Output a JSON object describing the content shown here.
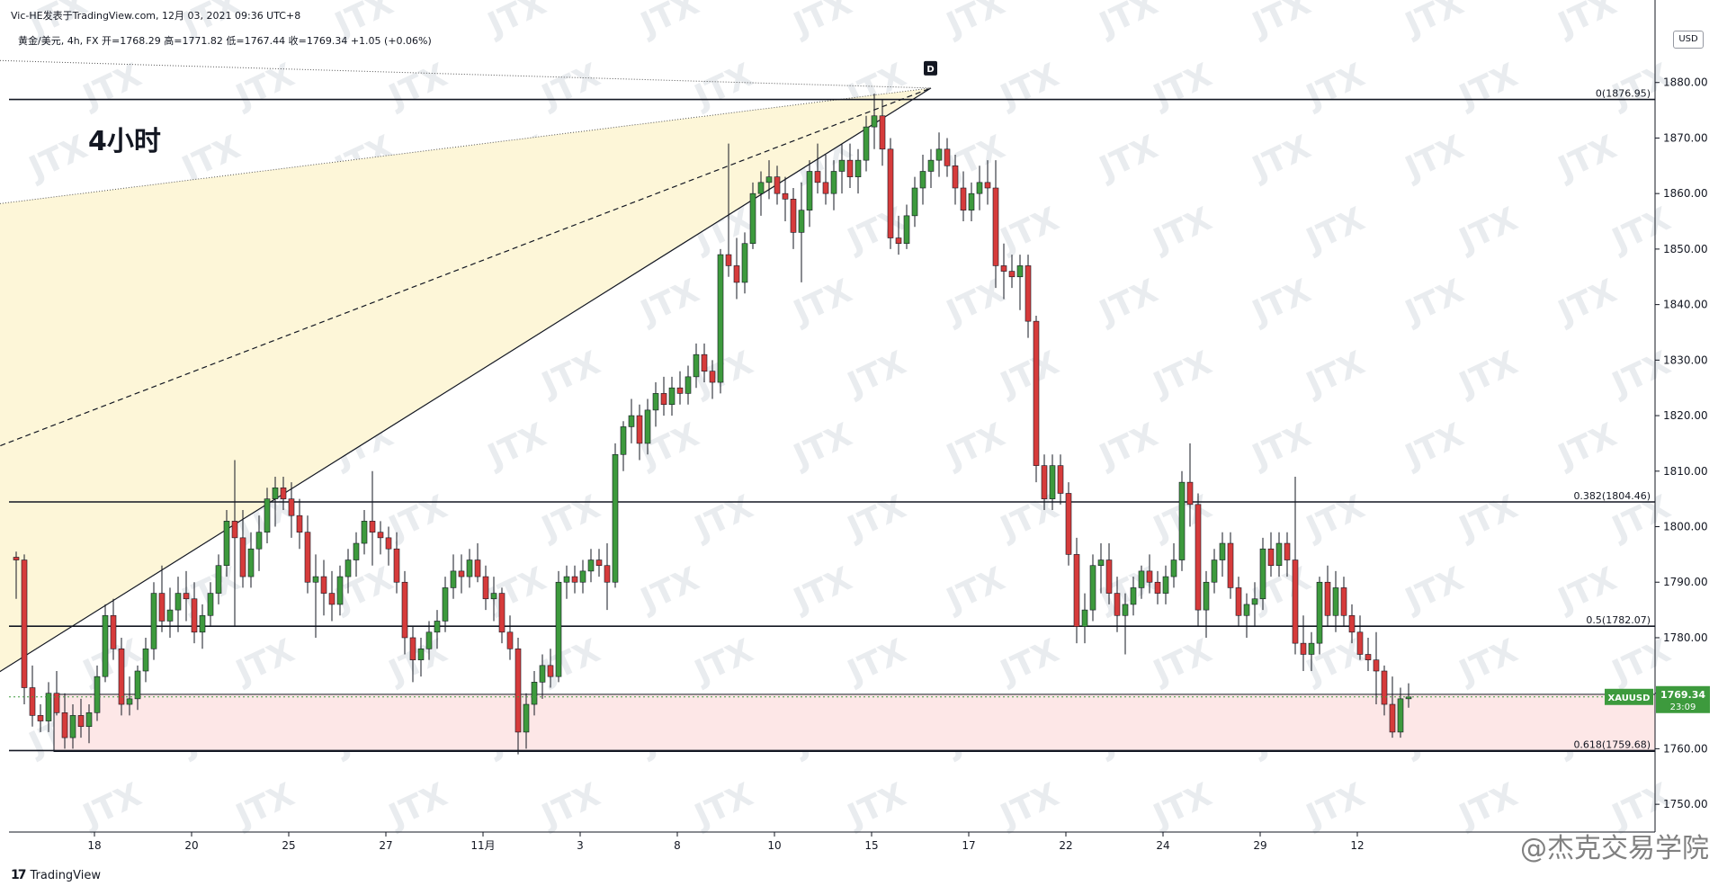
{
  "header": {
    "caption": "Vic-HE发表于TradingView.com, 12月 03, 2021 09:36 UTC+8",
    "symbol_info": "黄金/美元, 4h, FX  开=1768.29  高=1771.82  低=1767.44  收=1769.34  +1.05 (+0.06%)"
  },
  "big_label": "4小时",
  "currency_badge": "USD",
  "branding": {
    "logo": "17",
    "name": "TradingView"
  },
  "watermark": "JTX",
  "stamp_text": "@杰克交易学院",
  "price_tag": {
    "symbol": "XAUUSD",
    "price": "1769.34",
    "countdown": "23:09"
  },
  "pattern_label": "D",
  "colors": {
    "up": "#3d9a3d",
    "down": "#d63b3b",
    "wedge_fill": "#fdf6d8",
    "zone_fill": "#fde7e7",
    "price_tag": "#3d9a3d"
  },
  "chart_data": {
    "type": "candlestick",
    "title": "黄金/美元, 4h, FX",
    "ylim": [
      1745,
      1890
    ],
    "y_ticks": [
      1750,
      1760,
      1770,
      1780,
      1790,
      1800,
      1810,
      1820,
      1830,
      1840,
      1850,
      1860,
      1870,
      1880
    ],
    "y_tick_labels": [
      "1750.00",
      "1760.00",
      "1770.00",
      "1780.00",
      "1790.00",
      "1800.00",
      "1810.00",
      "1820.00",
      "1830.00",
      "1840.00",
      "1850.00",
      "1860.00",
      "1870.00",
      "1880.00"
    ],
    "x_ticks": [
      {
        "label": "18",
        "bar": 5
      },
      {
        "label": "20",
        "bar": 17
      },
      {
        "label": "25",
        "bar": 29
      },
      {
        "label": "27",
        "bar": 41
      },
      {
        "label": "11月",
        "bar": 53
      },
      {
        "label": "3",
        "bar": 65
      },
      {
        "label": "8",
        "bar": 77
      },
      {
        "label": "10",
        "bar": 89
      },
      {
        "label": "15",
        "bar": 101
      },
      {
        "label": "17",
        "bar": 113
      },
      {
        "label": "22",
        "bar": 125
      },
      {
        "label": "24",
        "bar": 137
      },
      {
        "label": "29",
        "bar": 149
      },
      {
        "label": "12",
        "bar": 161
      }
    ],
    "fib_levels": [
      {
        "label": "0(1876.95)",
        "value": 1876.95
      },
      {
        "label": "0.382(1804.46)",
        "value": 1804.46
      },
      {
        "label": "0.5(1782.07)",
        "value": 1782.07
      },
      {
        "label": "0.618(1759.68)",
        "value": 1759.68
      }
    ],
    "support_zone": [
      1759.5,
      1769.8
    ],
    "current_price": 1769.34,
    "ohlc": [
      [
        1794.5,
        1795.5,
        1787.0,
        1794.0
      ],
      [
        1794.0,
        1795.0,
        1768.0,
        1771.0
      ],
      [
        1771.0,
        1775.0,
        1764.0,
        1766.0
      ],
      [
        1766.0,
        1768.0,
        1763.0,
        1765.0
      ],
      [
        1765.0,
        1772.0,
        1763.0,
        1770.0
      ],
      [
        1770.0,
        1774.0,
        1766.0,
        1766.5
      ],
      [
        1766.5,
        1770.0,
        1760.0,
        1762.0
      ],
      [
        1762.0,
        1768.0,
        1760.0,
        1766.0
      ],
      [
        1766.0,
        1769.0,
        1762.0,
        1764.0
      ],
      [
        1764.0,
        1768.0,
        1761.0,
        1766.5
      ],
      [
        1766.5,
        1775.0,
        1765.0,
        1773.0
      ],
      [
        1773.0,
        1786.0,
        1772.0,
        1784.0
      ],
      [
        1784.0,
        1787.0,
        1776.0,
        1778.0
      ],
      [
        1778.0,
        1780.0,
        1766.0,
        1768.0
      ],
      [
        1768.0,
        1773.0,
        1766.0,
        1769.0
      ],
      [
        1769.0,
        1775.0,
        1767.0,
        1774.0
      ],
      [
        1774.0,
        1780.0,
        1772.0,
        1778.0
      ],
      [
        1778.0,
        1790.0,
        1776.0,
        1788.0
      ],
      [
        1788.0,
        1793.0,
        1781.0,
        1783.0
      ],
      [
        1783.0,
        1789.0,
        1780.0,
        1785.0
      ],
      [
        1785.0,
        1791.0,
        1781.0,
        1788.0
      ],
      [
        1788.0,
        1792.0,
        1783.0,
        1787.0
      ],
      [
        1787.0,
        1790.0,
        1779.0,
        1781.0
      ],
      [
        1781.0,
        1786.0,
        1778.0,
        1784.0
      ],
      [
        1784.0,
        1790.0,
        1782.0,
        1788.0
      ],
      [
        1788.0,
        1795.0,
        1786.0,
        1793.0
      ],
      [
        1793.0,
        1803.0,
        1791.0,
        1801.0
      ],
      [
        1801.0,
        1812.0,
        1782.0,
        1798.0
      ],
      [
        1798.0,
        1803.0,
        1789.0,
        1791.0
      ],
      [
        1791.0,
        1799.0,
        1789.0,
        1796.0
      ],
      [
        1796.0,
        1802.0,
        1792.0,
        1799.0
      ],
      [
        1799.0,
        1807.0,
        1797.0,
        1805.0
      ],
      [
        1805.0,
        1809.0,
        1800.0,
        1807.0
      ],
      [
        1807.0,
        1809.0,
        1803.0,
        1805.0
      ],
      [
        1805.0,
        1808.0,
        1798.0,
        1802.0
      ],
      [
        1802.0,
        1805.0,
        1796.0,
        1799.0
      ],
      [
        1799.0,
        1802.0,
        1788.0,
        1790.0
      ],
      [
        1790.0,
        1795.0,
        1780.0,
        1791.0
      ],
      [
        1791.0,
        1794.0,
        1784.0,
        1788.0
      ],
      [
        1788.0,
        1792.0,
        1783.0,
        1786.0
      ],
      [
        1786.0,
        1793.0,
        1784.0,
        1791.0
      ],
      [
        1791.0,
        1796.0,
        1788.0,
        1794.0
      ],
      [
        1794.0,
        1799.0,
        1791.0,
        1797.0
      ],
      [
        1797.0,
        1803.0,
        1795.0,
        1801.0
      ],
      [
        1801.0,
        1810.0,
        1793.0,
        1799.0
      ],
      [
        1799.0,
        1801.0,
        1795.0,
        1798.0
      ],
      [
        1798.0,
        1800.0,
        1793.0,
        1796.0
      ],
      [
        1796.0,
        1799.0,
        1788.0,
        1790.0
      ],
      [
        1790.0,
        1792.0,
        1777.0,
        1780.0
      ],
      [
        1780.0,
        1782.0,
        1772.0,
        1776.0
      ],
      [
        1776.0,
        1780.0,
        1773.0,
        1778.0
      ],
      [
        1778.0,
        1783.0,
        1776.0,
        1781.0
      ],
      [
        1781.0,
        1785.0,
        1778.0,
        1783.0
      ],
      [
        1783.0,
        1791.0,
        1781.0,
        1789.0
      ],
      [
        1789.0,
        1795.0,
        1787.0,
        1792.0
      ],
      [
        1792.0,
        1795.0,
        1788.0,
        1791.0
      ],
      [
        1791.0,
        1796.0,
        1789.0,
        1794.0
      ],
      [
        1794.0,
        1797.0,
        1790.0,
        1791.0
      ],
      [
        1791.0,
        1793.0,
        1785.0,
        1787.0
      ],
      [
        1787.0,
        1791.0,
        1783.0,
        1788.0
      ],
      [
        1788.0,
        1789.0,
        1779.0,
        1781.0
      ],
      [
        1781.0,
        1784.0,
        1776.0,
        1778.0
      ],
      [
        1778.0,
        1780.0,
        1759.0,
        1763.0
      ],
      [
        1763.0,
        1770.0,
        1760.0,
        1768.0
      ],
      [
        1768.0,
        1774.0,
        1766.0,
        1772.0
      ],
      [
        1772.0,
        1777.0,
        1769.0,
        1775.0
      ],
      [
        1775.0,
        1778.0,
        1771.0,
        1773.0
      ],
      [
        1773.0,
        1792.0,
        1772.0,
        1790.0
      ],
      [
        1790.0,
        1793.0,
        1787.0,
        1791.0
      ],
      [
        1791.0,
        1793.0,
        1788.0,
        1790.0
      ],
      [
        1790.0,
        1794.0,
        1788.0,
        1792.0
      ],
      [
        1792.0,
        1796.0,
        1790.0,
        1794.0
      ],
      [
        1794.0,
        1796.0,
        1791.0,
        1793.0
      ],
      [
        1793.0,
        1797.0,
        1785.0,
        1790.0
      ],
      [
        1790.0,
        1815.0,
        1789.0,
        1813.0
      ],
      [
        1813.0,
        1819.0,
        1810.0,
        1818.0
      ],
      [
        1818.0,
        1823.0,
        1815.0,
        1820.0
      ],
      [
        1820.0,
        1822.0,
        1812.0,
        1815.0
      ],
      [
        1815.0,
        1823.0,
        1813.0,
        1821.0
      ],
      [
        1821.0,
        1826.0,
        1818.0,
        1824.0
      ],
      [
        1824.0,
        1827.0,
        1820.0,
        1822.0
      ],
      [
        1822.0,
        1827.0,
        1820.0,
        1825.0
      ],
      [
        1825.0,
        1828.0,
        1822.0,
        1824.0
      ],
      [
        1824.0,
        1829.0,
        1822.0,
        1827.0
      ],
      [
        1827.0,
        1833.0,
        1825.0,
        1831.0
      ],
      [
        1831.0,
        1833.0,
        1826.0,
        1828.0
      ],
      [
        1828.0,
        1830.0,
        1823.0,
        1826.0
      ],
      [
        1826.0,
        1850.0,
        1824.0,
        1849.0
      ],
      [
        1849.0,
        1869.0,
        1845.0,
        1847.0
      ],
      [
        1847.0,
        1852.0,
        1841.0,
        1844.0
      ],
      [
        1844.0,
        1853.0,
        1842.0,
        1851.0
      ],
      [
        1851.0,
        1862.0,
        1850.0,
        1860.0
      ],
      [
        1860.0,
        1864.0,
        1856.0,
        1862.0
      ],
      [
        1862.0,
        1866.0,
        1859.0,
        1863.0
      ],
      [
        1863.0,
        1865.0,
        1858.0,
        1860.0
      ],
      [
        1860.0,
        1863.0,
        1855.0,
        1859.0
      ],
      [
        1859.0,
        1861.0,
        1850.0,
        1853.0
      ],
      [
        1853.0,
        1862.0,
        1844.0,
        1857.0
      ],
      [
        1857.0,
        1866.0,
        1854.0,
        1864.0
      ],
      [
        1864.0,
        1869.0,
        1860.0,
        1862.0
      ],
      [
        1862.0,
        1867.0,
        1858.0,
        1860.0
      ],
      [
        1860.0,
        1866.0,
        1857.0,
        1864.0
      ],
      [
        1864.0,
        1869.0,
        1860.0,
        1866.0
      ],
      [
        1866.0,
        1869.0,
        1861.0,
        1863.0
      ],
      [
        1863.0,
        1868.0,
        1860.0,
        1866.0
      ],
      [
        1866.0,
        1874.0,
        1864.0,
        1872.0
      ],
      [
        1872.0,
        1878.0,
        1868.0,
        1874.0
      ],
      [
        1874.0,
        1877.0,
        1865.0,
        1868.0
      ],
      [
        1868.0,
        1870.0,
        1850.0,
        1852.0
      ],
      [
        1852.0,
        1856.0,
        1849.0,
        1851.0
      ],
      [
        1851.0,
        1858.0,
        1850.0,
        1856.0
      ],
      [
        1856.0,
        1863.0,
        1854.0,
        1861.0
      ],
      [
        1861.0,
        1867.0,
        1858.0,
        1864.0
      ],
      [
        1864.0,
        1868.0,
        1861.0,
        1866.0
      ],
      [
        1866.0,
        1871.0,
        1863.0,
        1868.0
      ],
      [
        1868.0,
        1870.0,
        1863.0,
        1865.0
      ],
      [
        1865.0,
        1867.0,
        1858.0,
        1861.0
      ],
      [
        1861.0,
        1864.0,
        1855.0,
        1857.0
      ],
      [
        1857.0,
        1862.0,
        1855.0,
        1860.0
      ],
      [
        1860.0,
        1865.0,
        1857.0,
        1862.0
      ],
      [
        1862.0,
        1866.0,
        1858.0,
        1861.0
      ],
      [
        1861.0,
        1866.0,
        1843.0,
        1847.0
      ],
      [
        1847.0,
        1851.0,
        1841.0,
        1846.0
      ],
      [
        1846.0,
        1849.0,
        1843.0,
        1845.0
      ],
      [
        1845.0,
        1849.0,
        1839.0,
        1847.0
      ],
      [
        1847.0,
        1849.0,
        1834.0,
        1837.0
      ],
      [
        1837.0,
        1838.0,
        1808.0,
        1811.0
      ],
      [
        1811.0,
        1813.0,
        1803.0,
        1805.0
      ],
      [
        1805.0,
        1813.0,
        1803.0,
        1811.0
      ],
      [
        1811.0,
        1813.0,
        1804.0,
        1806.0
      ],
      [
        1806.0,
        1808.0,
        1793.0,
        1795.0
      ],
      [
        1795.0,
        1798.0,
        1779.0,
        1782.0
      ],
      [
        1782.0,
        1788.0,
        1779.0,
        1785.0
      ],
      [
        1785.0,
        1795.0,
        1783.0,
        1793.0
      ],
      [
        1793.0,
        1797.0,
        1788.0,
        1794.0
      ],
      [
        1794.0,
        1797.0,
        1786.0,
        1788.0
      ],
      [
        1788.0,
        1791.0,
        1781.0,
        1784.0
      ],
      [
        1784.0,
        1788.0,
        1777.0,
        1786.0
      ],
      [
        1786.0,
        1791.0,
        1784.0,
        1789.0
      ],
      [
        1789.0,
        1793.0,
        1787.0,
        1792.0
      ],
      [
        1792.0,
        1795.0,
        1788.0,
        1790.0
      ],
      [
        1790.0,
        1792.0,
        1786.0,
        1788.0
      ],
      [
        1788.0,
        1793.0,
        1786.0,
        1791.0
      ],
      [
        1791.0,
        1797.0,
        1789.0,
        1794.0
      ],
      [
        1794.0,
        1810.0,
        1792.0,
        1808.0
      ],
      [
        1808.0,
        1815.0,
        1800.0,
        1804.0
      ],
      [
        1804.0,
        1806.0,
        1782.0,
        1785.0
      ],
      [
        1785.0,
        1792.0,
        1780.0,
        1790.0
      ],
      [
        1790.0,
        1796.0,
        1788.0,
        1794.0
      ],
      [
        1794.0,
        1799.0,
        1791.0,
        1797.0
      ],
      [
        1797.0,
        1799.0,
        1787.0,
        1789.0
      ],
      [
        1789.0,
        1791.0,
        1782.0,
        1784.0
      ],
      [
        1784.0,
        1788.0,
        1780.0,
        1786.0
      ],
      [
        1786.0,
        1790.0,
        1782.0,
        1787.0
      ],
      [
        1787.0,
        1798.0,
        1785.0,
        1796.0
      ],
      [
        1796.0,
        1799.0,
        1791.0,
        1793.0
      ],
      [
        1793.0,
        1799.0,
        1791.0,
        1797.0
      ],
      [
        1797.0,
        1799.0,
        1791.0,
        1794.0
      ],
      [
        1794.0,
        1809.0,
        1777.0,
        1779.0
      ],
      [
        1779.0,
        1784.0,
        1774.0,
        1777.0
      ],
      [
        1777.0,
        1781.0,
        1774.0,
        1779.0
      ],
      [
        1779.0,
        1791.0,
        1777.0,
        1790.0
      ],
      [
        1790.0,
        1793.0,
        1782.0,
        1784.0
      ],
      [
        1784.0,
        1792.0,
        1781.0,
        1789.0
      ],
      [
        1789.0,
        1791.0,
        1782.0,
        1784.0
      ],
      [
        1784.0,
        1786.0,
        1779.0,
        1781.0
      ],
      [
        1781.0,
        1784.0,
        1776.0,
        1777.0
      ],
      [
        1777.0,
        1780.0,
        1774.0,
        1776.0
      ],
      [
        1776.0,
        1781.0,
        1768.0,
        1774.0
      ],
      [
        1774.0,
        1775.0,
        1766.0,
        1768.0
      ],
      [
        1768.0,
        1773.0,
        1762.0,
        1763.0
      ],
      [
        1763.0,
        1771.0,
        1762.0,
        1769.0
      ],
      [
        1769.0,
        1771.8,
        1767.4,
        1769.34
      ]
    ],
    "trendlines": [
      {
        "name": "solid",
        "from": [
          -3,
          1773.0
        ],
        "to": [
          113,
          1879.0
        ]
      },
      {
        "name": "dashed",
        "from": [
          -3,
          1814.0
        ],
        "to": [
          113,
          1879.0
        ]
      },
      {
        "name": "dotted-upper",
        "from": [
          -3,
          1884.0
        ],
        "to": [
          113,
          1879.0
        ]
      },
      {
        "name": "dotted-lower",
        "from": [
          -3,
          1858.0
        ],
        "to": [
          113,
          1879.0
        ]
      }
    ]
  }
}
